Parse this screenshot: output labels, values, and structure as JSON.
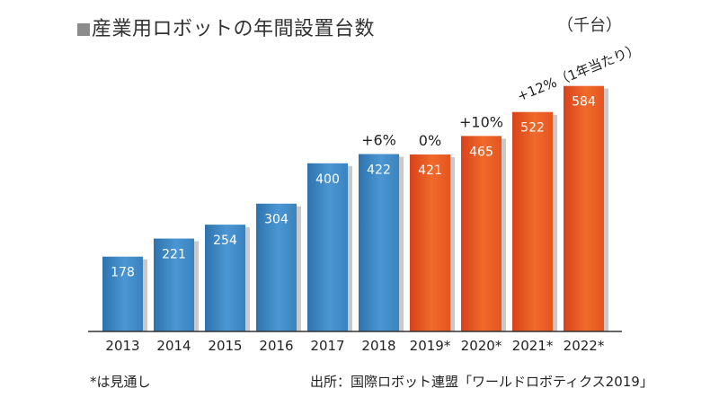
{
  "header": {
    "title": "産業用ロボットの年間設置台数",
    "unit": "（千台）"
  },
  "footer": {
    "note": "*は見通し",
    "source": "出所：国際ロボット連盟「ワールドロボティクス2019」"
  },
  "colors": {
    "actual": "#3f8ac7",
    "forecast": "#e9551f",
    "title_mark": "#8c8c8c"
  },
  "chart_data": {
    "type": "bar",
    "title": "産業用ロボットの年間設置台数",
    "unit": "（千台）",
    "categories": [
      "2013",
      "2014",
      "2015",
      "2016",
      "2017",
      "2018",
      "2019*",
      "2020*",
      "2021*",
      "2022*"
    ],
    "values": [
      178,
      221,
      254,
      304,
      400,
      422,
      421,
      465,
      522,
      584
    ],
    "value_labels": [
      "178",
      "221",
      "254",
      "304",
      "400",
      "422",
      "421",
      "465",
      "522",
      "584"
    ],
    "forecast_from_index": 6,
    "annotations": [
      "",
      "",
      "",
      "",
      "",
      "+6%",
      "0%",
      "+10%",
      "",
      ""
    ],
    "rotated_annotation": {
      "text": "+12%（1年当たり）",
      "category_index": 8
    },
    "ylim": [
      0,
      620
    ]
  }
}
